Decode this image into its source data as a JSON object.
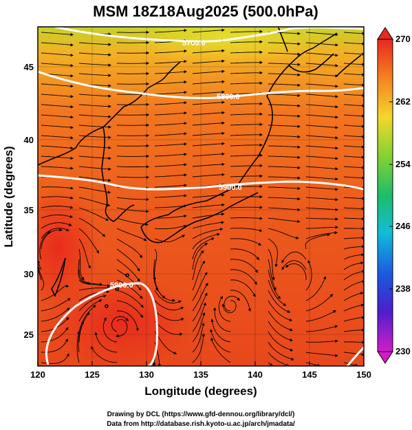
{
  "title": "MSM 18Z18Aug2025 (500.0hPa)",
  "xlabel": "Longitude (degrees)",
  "ylabel": "Latitude  (degrees)",
  "x_ticks": [
    "120",
    "125",
    "130",
    "135",
    "140",
    "145",
    "150"
  ],
  "y_ticks": [
    "25",
    "30",
    "35",
    "40",
    "45"
  ],
  "colorbar": {
    "min": 230,
    "max": 270,
    "labels": [
      "270",
      "262",
      "254",
      "246",
      "238",
      "230"
    ]
  },
  "contours": [
    {
      "value": 5700,
      "label": "5700.0"
    },
    {
      "value": 5800,
      "label": "5800.0"
    },
    {
      "value": 5900,
      "label": "5900.0"
    }
  ],
  "footer": {
    "line1": "Drawing by DCL (https://www.gfd-dennou.org/library/dcl/)",
    "line2": "Data from http://database.rish.kyoto-u.ac.jp/arch/jmadata/"
  },
  "chart_data": {
    "type": "heatmap",
    "title": "MSM 18Z18Aug2025 (500.0hPa)",
    "xlabel": "Longitude (degrees)",
    "ylabel": "Latitude  (degrees)",
    "xlim": [
      120,
      150
    ],
    "ylim": [
      22.4,
      47.6
    ],
    "colorbar_range": [
      230,
      270
    ],
    "contour_levels": [
      5700,
      5800,
      5900
    ],
    "colors": {
      "warm": "#e8321e",
      "mid": "#f2701e",
      "cool": "#c8d22a",
      "contour": "#ffffff"
    }
  }
}
